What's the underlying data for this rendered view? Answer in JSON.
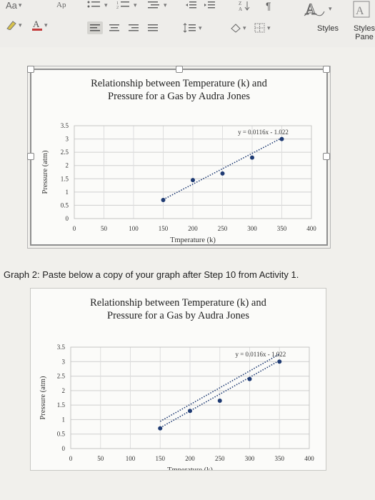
{
  "ribbon": {
    "font_size_label": "Aa",
    "styles_label": "Styles",
    "styles_pane_label": "Styles Pane",
    "icons": [
      "clear-formatting-icon",
      "highlight-icon",
      "font-color-icon",
      "bullets-icon",
      "numbering-icon",
      "multilevel-list-icon",
      "decrease-indent-icon",
      "increase-indent-icon",
      "sort-icon",
      "pilcrow-icon",
      "align-left-icon",
      "align-center-icon",
      "align-right-icon",
      "justify-icon",
      "line-spacing-icon",
      "shading-icon",
      "borders-icon"
    ],
    "accent_color": "#c33b3b"
  },
  "caption": "Graph 2: Paste below a copy of your graph after Step 10 from Activity 1.",
  "charts": [
    {
      "title_line1": "Relationship between Temperature (k) and",
      "title_line2": "Pressure for a Gas by Audra Jones",
      "xlabel": "Tmperature (k)",
      "ylabel": "Pressure (atm)",
      "equation": "y = 0.0116x - 1.022",
      "xticks": [
        "0",
        "50",
        "100",
        "150",
        "200",
        "250",
        "300",
        "350",
        "400"
      ],
      "yticks": [
        "0",
        "0.5",
        "1",
        "1.5",
        "2",
        "2.5",
        "3",
        "3.5"
      ]
    },
    {
      "title_line1": "Relationship between Temperature (k) and",
      "title_line2": "Pressure for a Gas by Audra Jones",
      "xlabel": "Tmperature (k)",
      "ylabel": "Pressure (atm)",
      "equation": "y = 0.0116x - 1.022",
      "xticks": [
        "0",
        "50",
        "100",
        "150",
        "200",
        "250",
        "300",
        "350",
        "400"
      ],
      "yticks": [
        "0",
        "0.5",
        "1",
        "1.5",
        "2",
        "2.5",
        "3",
        "3.5"
      ]
    }
  ],
  "chart_data": [
    {
      "type": "scatter",
      "title": "Relationship between Temperature (k) and Pressure for a Gas by Audra Jones",
      "xlabel": "Tmperature (k)",
      "ylabel": "Pressure (atm)",
      "xlim": [
        0,
        400
      ],
      "ylim": [
        0,
        3.5
      ],
      "grid": true,
      "series": [
        {
          "x": [
            150,
            200,
            250,
            300,
            350
          ],
          "y": [
            0.7,
            1.45,
            1.7,
            2.3,
            3.0
          ]
        }
      ],
      "trendlines": [
        {
          "slope": 0.0116,
          "intercept": -1.022,
          "label": "y = 0.0116x - 1.022",
          "x_range": [
            150,
            350
          ]
        }
      ]
    },
    {
      "type": "scatter",
      "title": "Relationship between Temperature (k) and Pressure for a Gas by Audra Jones",
      "xlabel": "Tmperature (k)",
      "ylabel": "Pressure (atm)",
      "xlim": [
        0,
        400
      ],
      "ylim": [
        0,
        3.5
      ],
      "grid": true,
      "series": [
        {
          "x": [
            150,
            200,
            250,
            300,
            350
          ],
          "y": [
            0.7,
            1.3,
            1.65,
            2.4,
            3.0
          ]
        }
      ],
      "trendlines": [
        {
          "slope": 0.0116,
          "intercept": -1.022,
          "label": "y = 0.0116x - 1.022",
          "x_range": [
            150,
            350
          ]
        },
        {
          "slope": 0.0116,
          "intercept": -1.022,
          "label": "",
          "x_range": [
            150,
            350
          ]
        }
      ]
    }
  ]
}
